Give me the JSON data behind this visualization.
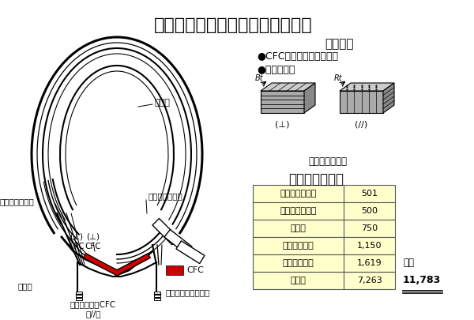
{
  "title": "第一壁及びダイバータタイル材料",
  "subtitle_materials": "使用材料",
  "material1": "●CFC（炭素繊維複合材）",
  "material2": "●等方性黒鉛",
  "fiber_label": "炭素繊維の配向",
  "tile_count_title": "使用タイル枚数",
  "table_rows": [
    [
      "内側ダイバータ",
      "501"
    ],
    [
      "外側ダイバータ",
      "500"
    ],
    [
      "ドーム",
      "750"
    ],
    [
      "内側バッフル",
      "1,150"
    ],
    [
      "外側バッフル",
      "1,619"
    ],
    [
      "その他",
      "7,263"
    ]
  ],
  "total_label": "合計",
  "total_value": "11,783",
  "table_bg": "#ffffcc",
  "table_border": "#555555",
  "label_first_wall": "第一壁",
  "label_inner_baffle": "内側バッフル板",
  "label_outer_baffle": "外側バッフル板",
  "label_dome": "ドーム",
  "label_divertor": "ダイバータ：CFC\n（//）",
  "label_other": "その他は等方性黒鉛",
  "bg_color": "#ffffff",
  "red_color": "#cc0000"
}
